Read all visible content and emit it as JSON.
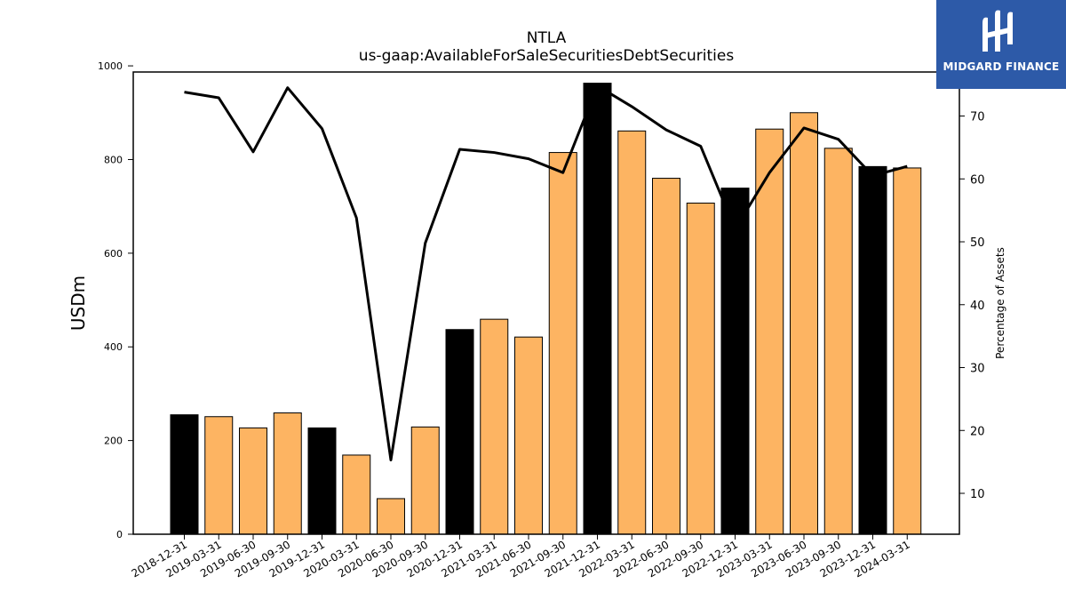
{
  "chart_data": {
    "type": "bar",
    "title": "NTLA",
    "subtitle": "us-gaap:AvailableForSaleSecuritiesDebtSecurities",
    "ylabel": "USDm",
    "y2label": "Percentage of Assets",
    "ylim": [
      0,
      1000
    ],
    "y2lim": [
      3.5,
      77
    ],
    "yticks": [
      0,
      200,
      400,
      600,
      800,
      1000
    ],
    "y2ticks": [
      10,
      20,
      30,
      40,
      50,
      60,
      70
    ],
    "categories": [
      "2018-12-31",
      "2019-03-31",
      "2019-06-30",
      "2019-09-30",
      "2019-12-31",
      "2020-03-31",
      "2020-06-30",
      "2020-09-30",
      "2020-12-31",
      "2021-03-31",
      "2021-06-30",
      "2021-09-30",
      "2021-12-31",
      "2022-03-31",
      "2022-06-30",
      "2022-09-30",
      "2022-12-31",
      "2023-03-31",
      "2023-06-30",
      "2023-09-30",
      "2023-12-31",
      "2024-03-31"
    ],
    "series": [
      {
        "values": [
          255,
          251,
          227,
          259,
          227,
          169,
          76,
          229,
          437,
          459,
          421,
          815,
          963,
          861,
          760,
          707,
          739,
          865,
          900,
          824,
          785,
          782
        ]
      },
      {
        "type": "line",
        "axis": "right",
        "values": [
          73.8,
          72.9,
          64.3,
          74.5,
          68.0,
          53.8,
          15.3,
          49.8,
          64.7,
          64.2,
          63.2,
          61.0,
          74.8,
          71.5,
          67.8,
          65.2,
          52.0,
          61.0,
          68.1,
          66.3,
          60.5,
          62.0
        ]
      }
    ],
    "bar_colors": [
      "#000000",
      "#fdb462",
      "#fdb462",
      "#fdb462",
      "#000000",
      "#fdb462",
      "#fdb462",
      "#fdb462",
      "#000000",
      "#fdb462",
      "#fdb462",
      "#fdb462",
      "#000000",
      "#fdb462",
      "#fdb462",
      "#fdb462",
      "#000000",
      "#fdb462",
      "#fdb462",
      "#fdb462",
      "#000000",
      "#fdb462"
    ],
    "line_color": "#000000",
    "grid": false,
    "legend": "none"
  },
  "logo": {
    "text": "MIDGARD FINANCE",
    "background": "#2d5aa8"
  }
}
